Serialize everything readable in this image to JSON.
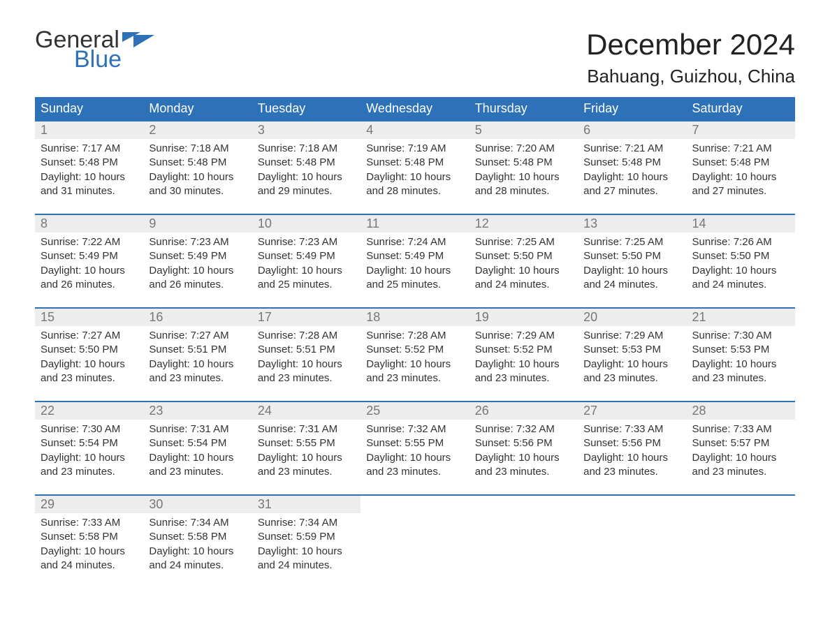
{
  "logo": {
    "word1": "General",
    "word2": "Blue"
  },
  "header": {
    "title": "December 2024",
    "location": "Bahuang, Guizhou, China"
  },
  "colors": {
    "accent": "#2d71b8",
    "header_bg": "#2d71b8",
    "header_text": "#ffffff",
    "daynum_bg": "#ededed",
    "daynum_text": "#777777",
    "body_text": "#333333",
    "background": "#ffffff"
  },
  "layout": {
    "columns": 7,
    "rows": 5
  },
  "weekday_labels": [
    "Sunday",
    "Monday",
    "Tuesday",
    "Wednesday",
    "Thursday",
    "Friday",
    "Saturday"
  ],
  "days": [
    {
      "n": "1",
      "sunrise": "7:17 AM",
      "sunset": "5:48 PM",
      "daylight": "10 hours and 31 minutes."
    },
    {
      "n": "2",
      "sunrise": "7:18 AM",
      "sunset": "5:48 PM",
      "daylight": "10 hours and 30 minutes."
    },
    {
      "n": "3",
      "sunrise": "7:18 AM",
      "sunset": "5:48 PM",
      "daylight": "10 hours and 29 minutes."
    },
    {
      "n": "4",
      "sunrise": "7:19 AM",
      "sunset": "5:48 PM",
      "daylight": "10 hours and 28 minutes."
    },
    {
      "n": "5",
      "sunrise": "7:20 AM",
      "sunset": "5:48 PM",
      "daylight": "10 hours and 28 minutes."
    },
    {
      "n": "6",
      "sunrise": "7:21 AM",
      "sunset": "5:48 PM",
      "daylight": "10 hours and 27 minutes."
    },
    {
      "n": "7",
      "sunrise": "7:21 AM",
      "sunset": "5:48 PM",
      "daylight": "10 hours and 27 minutes."
    },
    {
      "n": "8",
      "sunrise": "7:22 AM",
      "sunset": "5:49 PM",
      "daylight": "10 hours and 26 minutes."
    },
    {
      "n": "9",
      "sunrise": "7:23 AM",
      "sunset": "5:49 PM",
      "daylight": "10 hours and 26 minutes."
    },
    {
      "n": "10",
      "sunrise": "7:23 AM",
      "sunset": "5:49 PM",
      "daylight": "10 hours and 25 minutes."
    },
    {
      "n": "11",
      "sunrise": "7:24 AM",
      "sunset": "5:49 PM",
      "daylight": "10 hours and 25 minutes."
    },
    {
      "n": "12",
      "sunrise": "7:25 AM",
      "sunset": "5:50 PM",
      "daylight": "10 hours and 24 minutes."
    },
    {
      "n": "13",
      "sunrise": "7:25 AM",
      "sunset": "5:50 PM",
      "daylight": "10 hours and 24 minutes."
    },
    {
      "n": "14",
      "sunrise": "7:26 AM",
      "sunset": "5:50 PM",
      "daylight": "10 hours and 24 minutes."
    },
    {
      "n": "15",
      "sunrise": "7:27 AM",
      "sunset": "5:50 PM",
      "daylight": "10 hours and 23 minutes."
    },
    {
      "n": "16",
      "sunrise": "7:27 AM",
      "sunset": "5:51 PM",
      "daylight": "10 hours and 23 minutes."
    },
    {
      "n": "17",
      "sunrise": "7:28 AM",
      "sunset": "5:51 PM",
      "daylight": "10 hours and 23 minutes."
    },
    {
      "n": "18",
      "sunrise": "7:28 AM",
      "sunset": "5:52 PM",
      "daylight": "10 hours and 23 minutes."
    },
    {
      "n": "19",
      "sunrise": "7:29 AM",
      "sunset": "5:52 PM",
      "daylight": "10 hours and 23 minutes."
    },
    {
      "n": "20",
      "sunrise": "7:29 AM",
      "sunset": "5:53 PM",
      "daylight": "10 hours and 23 minutes."
    },
    {
      "n": "21",
      "sunrise": "7:30 AM",
      "sunset": "5:53 PM",
      "daylight": "10 hours and 23 minutes."
    },
    {
      "n": "22",
      "sunrise": "7:30 AM",
      "sunset": "5:54 PM",
      "daylight": "10 hours and 23 minutes."
    },
    {
      "n": "23",
      "sunrise": "7:31 AM",
      "sunset": "5:54 PM",
      "daylight": "10 hours and 23 minutes."
    },
    {
      "n": "24",
      "sunrise": "7:31 AM",
      "sunset": "5:55 PM",
      "daylight": "10 hours and 23 minutes."
    },
    {
      "n": "25",
      "sunrise": "7:32 AM",
      "sunset": "5:55 PM",
      "daylight": "10 hours and 23 minutes."
    },
    {
      "n": "26",
      "sunrise": "7:32 AM",
      "sunset": "5:56 PM",
      "daylight": "10 hours and 23 minutes."
    },
    {
      "n": "27",
      "sunrise": "7:33 AM",
      "sunset": "5:56 PM",
      "daylight": "10 hours and 23 minutes."
    },
    {
      "n": "28",
      "sunrise": "7:33 AM",
      "sunset": "5:57 PM",
      "daylight": "10 hours and 23 minutes."
    },
    {
      "n": "29",
      "sunrise": "7:33 AM",
      "sunset": "5:58 PM",
      "daylight": "10 hours and 24 minutes."
    },
    {
      "n": "30",
      "sunrise": "7:34 AM",
      "sunset": "5:58 PM",
      "daylight": "10 hours and 24 minutes."
    },
    {
      "n": "31",
      "sunrise": "7:34 AM",
      "sunset": "5:59 PM",
      "daylight": "10 hours and 24 minutes."
    }
  ],
  "labels": {
    "sunrise": "Sunrise: ",
    "sunset": "Sunset: ",
    "daylight": "Daylight: "
  },
  "typography": {
    "title_fontsize": 42,
    "location_fontsize": 26,
    "header_fontsize": 18,
    "daynum_fontsize": 18,
    "body_fontsize": 15,
    "font_family": "Arial"
  }
}
